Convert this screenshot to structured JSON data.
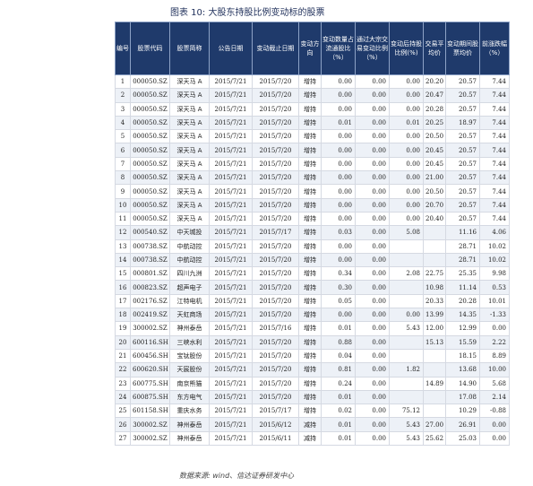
{
  "title": "图表 10:  大股东持股比例变动标的股票",
  "source": "数据来源:  wind、信达证券研发中心",
  "headers": [
    "编号",
    "股票代码",
    "股票简称",
    "公告日期",
    "变动截止日期",
    "变动方向",
    "变动数量占流通股比（%）",
    "通过大宗交易变动比例（%）",
    "变动后持股比例(%)",
    "交易平均价",
    "变动期间股票均价",
    "前涨跌幅（%）"
  ],
  "rows": [
    [
      "1",
      "000050.SZ",
      "深天马 A",
      "2015/7/21",
      "2015/7/20",
      "增持",
      "0.00",
      "0.00",
      "0.00",
      "20.20",
      "20.57",
      "7.44"
    ],
    [
      "2",
      "000050.SZ",
      "深天马 A",
      "2015/7/21",
      "2015/7/20",
      "增持",
      "0.00",
      "0.00",
      "0.00",
      "20.47",
      "20.57",
      "7.44"
    ],
    [
      "3",
      "000050.SZ",
      "深天马 A",
      "2015/7/21",
      "2015/7/20",
      "增持",
      "0.00",
      "0.00",
      "0.00",
      "20.28",
      "20.57",
      "7.44"
    ],
    [
      "4",
      "000050.SZ",
      "深天马 A",
      "2015/7/21",
      "2015/7/20",
      "增持",
      "0.01",
      "0.00",
      "0.01",
      "20.25",
      "18.97",
      "7.44"
    ],
    [
      "5",
      "000050.SZ",
      "深天马 A",
      "2015/7/21",
      "2015/7/20",
      "增持",
      "0.00",
      "0.00",
      "0.00",
      "20.50",
      "20.57",
      "7.44"
    ],
    [
      "6",
      "000050.SZ",
      "深天马 A",
      "2015/7/21",
      "2015/7/20",
      "增持",
      "0.00",
      "0.00",
      "0.00",
      "20.45",
      "20.57",
      "7.44"
    ],
    [
      "7",
      "000050.SZ",
      "深天马 A",
      "2015/7/21",
      "2015/7/20",
      "增持",
      "0.00",
      "0.00",
      "0.00",
      "20.45",
      "20.57",
      "7.44"
    ],
    [
      "8",
      "000050.SZ",
      "深天马 A",
      "2015/7/21",
      "2015/7/20",
      "增持",
      "0.00",
      "0.00",
      "0.00",
      "21.00",
      "20.57",
      "7.44"
    ],
    [
      "9",
      "000050.SZ",
      "深天马 A",
      "2015/7/21",
      "2015/7/20",
      "增持",
      "0.00",
      "0.00",
      "0.00",
      "20.50",
      "20.57",
      "7.44"
    ],
    [
      "10",
      "000050.SZ",
      "深天马 A",
      "2015/7/21",
      "2015/7/20",
      "增持",
      "0.00",
      "0.00",
      "0.00",
      "20.70",
      "20.57",
      "7.44"
    ],
    [
      "11",
      "000050.SZ",
      "深天马 A",
      "2015/7/21",
      "2015/7/20",
      "增持",
      "0.00",
      "0.00",
      "0.00",
      "20.40",
      "20.57",
      "7.44"
    ],
    [
      "12",
      "000540.SZ",
      "中天城投",
      "2015/7/21",
      "2015/7/17",
      "增持",
      "0.03",
      "0.00",
      "5.08",
      "",
      "11.16",
      "4.06"
    ],
    [
      "13",
      "000738.SZ",
      "中航动控",
      "2015/7/21",
      "2015/7/20",
      "增持",
      "0.00",
      "0.00",
      "",
      "",
      "28.71",
      "10.02"
    ],
    [
      "14",
      "000738.SZ",
      "中航动控",
      "2015/7/21",
      "2015/7/20",
      "增持",
      "0.00",
      "0.00",
      "",
      "",
      "28.71",
      "10.02"
    ],
    [
      "15",
      "000801.SZ",
      "四川九洲",
      "2015/7/21",
      "2015/7/20",
      "增持",
      "0.34",
      "0.00",
      "2.08",
      "22.75",
      "25.35",
      "9.98"
    ],
    [
      "16",
      "000823.SZ",
      "超声电子",
      "2015/7/21",
      "2015/7/20",
      "增持",
      "0.30",
      "0.00",
      "",
      "10.98",
      "11.14",
      "0.53"
    ],
    [
      "17",
      "002176.SZ",
      "江特电机",
      "2015/7/21",
      "2015/7/20",
      "增持",
      "0.05",
      "0.00",
      "",
      "20.33",
      "20.28",
      "10.01"
    ],
    [
      "18",
      "002419.SZ",
      "天虹商场",
      "2015/7/21",
      "2015/7/20",
      "增持",
      "0.00",
      "0.00",
      "0.00",
      "13.99",
      "14.35",
      "-1.33"
    ],
    [
      "19",
      "300002.SZ",
      "神州泰岳",
      "2015/7/21",
      "2015/7/16",
      "增持",
      "0.01",
      "0.00",
      "5.43",
      "12.00",
      "12.99",
      "0.00"
    ],
    [
      "20",
      "600116.SH",
      "三峡水利",
      "2015/7/21",
      "2015/7/20",
      "增持",
      "0.88",
      "0.00",
      "",
      "15.13",
      "15.59",
      "2.22"
    ],
    [
      "21",
      "600456.SH",
      "宝钛股份",
      "2015/7/21",
      "2015/7/20",
      "增持",
      "0.04",
      "0.00",
      "",
      "",
      "18.15",
      "8.89"
    ],
    [
      "22",
      "600620.SH",
      "天宸股份",
      "2015/7/21",
      "2015/7/20",
      "增持",
      "0.81",
      "0.00",
      "1.82",
      "",
      "13.68",
      "10.00"
    ],
    [
      "23",
      "600775.SH",
      "南京熊猫",
      "2015/7/21",
      "2015/7/20",
      "增持",
      "0.24",
      "0.00",
      "",
      "14.89",
      "14.90",
      "5.68"
    ],
    [
      "24",
      "600875.SH",
      "东方电气",
      "2015/7/21",
      "2015/7/20",
      "增持",
      "0.01",
      "0.00",
      "",
      "",
      "17.08",
      "2.14"
    ],
    [
      "25",
      "601158.SH",
      "重庆水务",
      "2015/7/21",
      "2015/7/17",
      "增持",
      "0.02",
      "0.00",
      "75.12",
      "",
      "10.29",
      "-0.88"
    ],
    [
      "26",
      "300002.SZ",
      "神州泰岳",
      "2015/7/21",
      "2015/6/12",
      "减持",
      "0.01",
      "0.00",
      "5.43",
      "27.00",
      "26.91",
      "0.00"
    ],
    [
      "27",
      "300002.SZ",
      "神州泰岳",
      "2015/7/21",
      "2015/6/11",
      "减持",
      "0.01",
      "0.00",
      "5.43",
      "25.62",
      "25.03",
      "0.00"
    ]
  ]
}
